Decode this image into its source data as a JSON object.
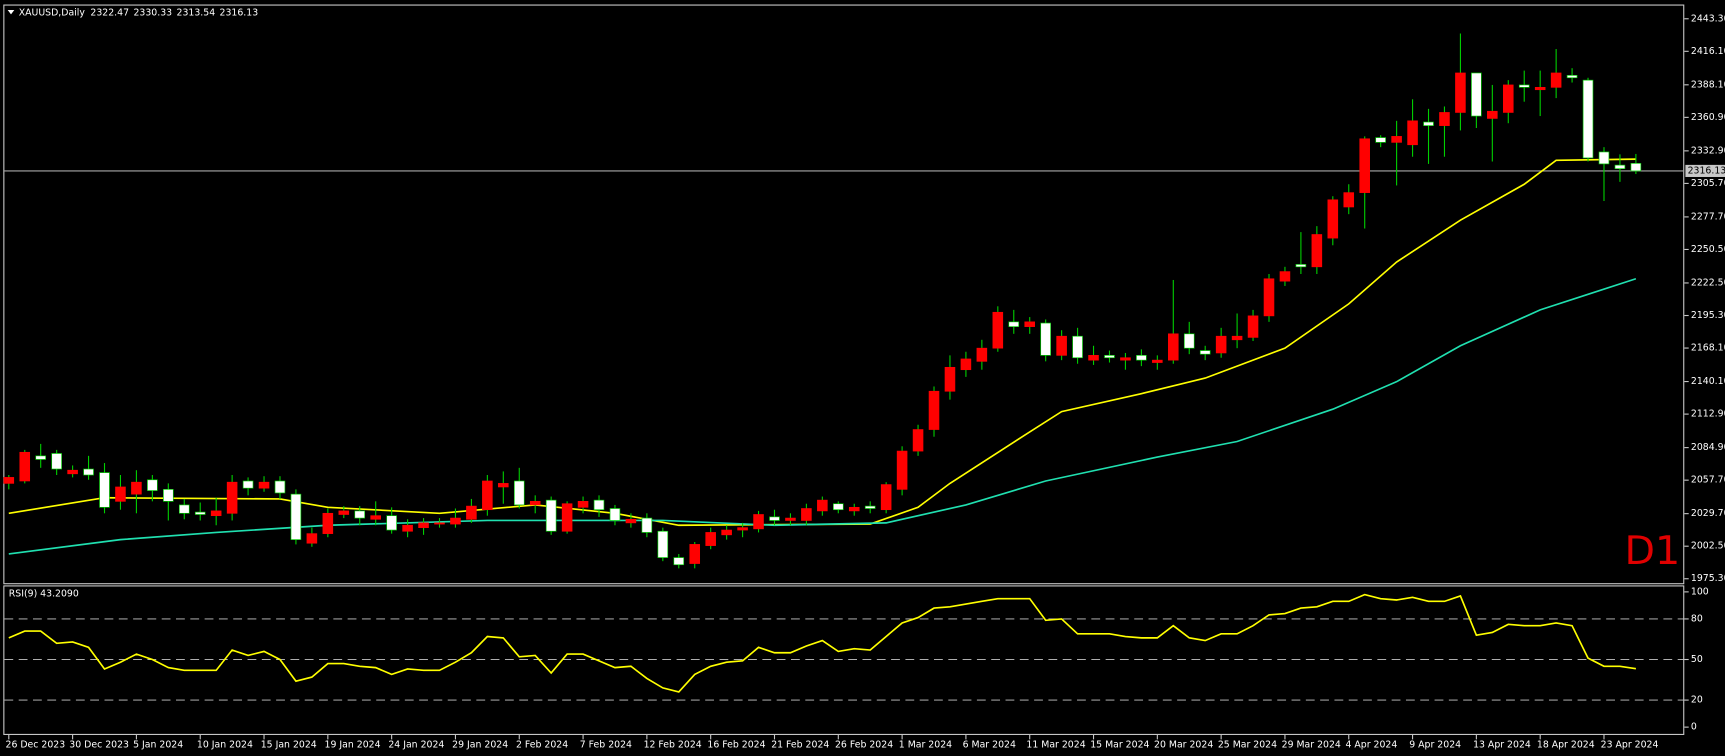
{
  "chart_data": [
    {
      "type": "candlestick",
      "title": "XAUUSD,Daily",
      "ohlc_display": [
        2322.47,
        2330.33,
        2313.54,
        2316.13
      ],
      "timeframe_label": "D1",
      "categories": [
        "26 Dec 2023",
        null,
        null,
        null,
        "30 Dec 2023",
        null,
        null,
        null,
        "5 Jan 2024",
        null,
        null,
        null,
        "10 Jan 2024",
        null,
        null,
        null,
        "15 Jan 2024",
        null,
        null,
        null,
        "19 Jan 2024",
        null,
        null,
        null,
        "24 Jan 2024",
        null,
        null,
        null,
        "29 Jan 2024",
        null,
        null,
        null,
        "2 Feb 2024",
        null,
        null,
        null,
        "7 Feb 2024",
        null,
        null,
        null,
        "12 Feb 2024",
        null,
        null,
        null,
        "16 Feb 2024",
        null,
        null,
        null,
        "21 Feb 2024",
        null,
        null,
        null,
        "26 Feb 2024",
        null,
        null,
        null,
        "1 Mar 2024",
        null,
        null,
        null,
        "6 Mar 2024",
        null,
        null,
        null,
        "11 Mar 2024",
        null,
        null,
        null,
        "15 Mar 2024",
        null,
        null,
        null,
        "20 Mar 2024",
        null,
        null,
        null,
        "25 Mar 2024",
        null,
        null,
        null,
        "29 Mar 2024",
        null,
        null,
        null,
        "4 Apr 2024",
        null,
        null,
        null,
        "9 Apr 2024",
        null,
        null,
        null,
        "13 Apr 2024",
        null,
        null,
        null,
        "18 Apr 2024",
        null,
        null,
        null,
        "23 Apr 2024",
        null,
        null
      ],
      "open": [
        2055,
        2057,
        2078,
        2080,
        2063,
        2067,
        2064,
        2040,
        2046,
        2058,
        2050,
        2037,
        2031,
        2028,
        2030,
        2057,
        2051,
        2057,
        2046,
        2005,
        2013,
        2029,
        2032,
        2025,
        2028,
        2015,
        2018,
        2021,
        2021,
        2025,
        2033,
        2052,
        2057,
        2037,
        2041,
        2015,
        2035,
        2041,
        2034,
        2022,
        2026,
        2015,
        1993,
        1988,
        2003,
        2012,
        2016,
        2017,
        2027,
        2024,
        2024,
        2032,
        2038,
        2032,
        2036,
        2033,
        2050,
        2082,
        2100,
        2132,
        2150,
        2157,
        2168,
        2190,
        2186,
        2189,
        2162,
        2178,
        2158,
        2162,
        2158,
        2162,
        2156,
        2158,
        2180,
        2166,
        2164,
        2175,
        2177,
        2195,
        2224,
        2238,
        2236,
        2260,
        2286,
        2298,
        2344,
        2340,
        2338,
        2357,
        2354,
        2365,
        2398,
        2360,
        2365,
        2388,
        2384,
        2386,
        2396,
        2392,
        2332,
        2321,
        2322.47
      ],
      "high": [
        2062,
        2083,
        2088,
        2083,
        2070,
        2078,
        2072,
        2062,
        2066,
        2062,
        2055,
        2042,
        2039,
        2043,
        2062,
        2060,
        2061,
        2061,
        2050,
        2018,
        2034,
        2036,
        2036,
        2040,
        2035,
        2025,
        2026,
        2026,
        2034,
        2042,
        2062,
        2065,
        2068,
        2045,
        2044,
        2040,
        2044,
        2045,
        2037,
        2030,
        2030,
        2018,
        1996,
        2006,
        2018,
        2020,
        2022,
        2032,
        2033,
        2030,
        2038,
        2044,
        2040,
        2038,
        2040,
        2056,
        2086,
        2104,
        2136,
        2162,
        2165,
        2175,
        2203,
        2200,
        2194,
        2192,
        2183,
        2185,
        2170,
        2166,
        2164,
        2167,
        2162,
        2225,
        2190,
        2170,
        2185,
        2197,
        2200,
        2230,
        2236,
        2265,
        2270,
        2295,
        2305,
        2345,
        2346,
        2358,
        2376,
        2368,
        2370,
        2431,
        2398,
        2388,
        2392,
        2400,
        2400,
        2418,
        2402,
        2394,
        2336,
        2330,
        2330.33
      ],
      "low": [
        2050,
        2055,
        2068,
        2062,
        2060,
        2058,
        2030,
        2033,
        2030,
        2040,
        2024,
        2025,
        2024,
        2020,
        2024,
        2045,
        2048,
        2042,
        2004,
        2002,
        2010,
        2026,
        2020,
        2020,
        2013,
        2010,
        2012,
        2018,
        2018,
        2022,
        2028,
        2038,
        2034,
        2030,
        2012,
        2013,
        2030,
        2027,
        2020,
        2018,
        2010,
        1990,
        1984,
        1984,
        2000,
        2008,
        2010,
        2014,
        2020,
        2020,
        2020,
        2028,
        2030,
        2028,
        2030,
        2030,
        2045,
        2078,
        2094,
        2125,
        2144,
        2150,
        2165,
        2180,
        2180,
        2157,
        2158,
        2155,
        2154,
        2156,
        2150,
        2153,
        2150,
        2155,
        2163,
        2158,
        2160,
        2168,
        2174,
        2190,
        2220,
        2230,
        2230,
        2254,
        2280,
        2268,
        2336,
        2304,
        2328,
        2322,
        2328,
        2350,
        2352,
        2324,
        2356,
        2374,
        2362,
        2377,
        2390,
        2324,
        2291,
        2307,
        2313.54
      ],
      "close": [
        2060,
        2081,
        2075,
        2067,
        2066,
        2062,
        2035,
        2052,
        2056,
        2049,
        2040,
        2030,
        2029,
        2032,
        2056,
        2051,
        2056,
        2047,
        2008,
        2013,
        2030,
        2032,
        2026,
        2028,
        2016,
        2020,
        2022,
        2022,
        2026,
        2036,
        2057,
        2055,
        2037,
        2040,
        2015,
        2038,
        2040,
        2033,
        2024,
        2025,
        2014,
        1993,
        1987,
        2004,
        2014,
        2016,
        2018,
        2029,
        2024,
        2026,
        2034,
        2041,
        2033,
        2035,
        2034,
        2054,
        2082,
        2100,
        2132,
        2152,
        2159,
        2168,
        2198,
        2186,
        2190,
        2162,
        2178,
        2160,
        2162,
        2160,
        2160,
        2158,
        2158,
        2180,
        2168,
        2163,
        2178,
        2178,
        2195,
        2226,
        2232,
        2236,
        2263,
        2292,
        2298,
        2343,
        2340,
        2345,
        2358,
        2354,
        2365,
        2398,
        2362,
        2366,
        2388,
        2386,
        2386,
        2398,
        2394,
        2327,
        2322,
        2318,
        2316.13
      ],
      "up_color": "#ff0000",
      "down_color": "#ffffff",
      "wick_color": "#00d000",
      "series": [
        {
          "color": "#ffff00",
          "x": [
            0,
            6,
            17,
            20,
            27,
            33,
            38,
            42,
            54,
            57,
            59,
            64,
            66,
            71,
            75,
            80,
            84,
            87,
            91,
            95,
            97,
            102
          ],
          "values": [
            2030,
            2043,
            2042,
            2035,
            2030,
            2037,
            2030,
            2020,
            2021,
            2035,
            2055,
            2098,
            2115,
            2130,
            2143,
            2168,
            2205,
            2240,
            2275,
            2305,
            2325,
            2326
          ]
        },
        {
          "color": "#20e0b0",
          "x": [
            0,
            7,
            13,
            20,
            30,
            41,
            48,
            55,
            60,
            65,
            72,
            77,
            83,
            87,
            91,
            96,
            99,
            102
          ],
          "values": [
            1996,
            2008,
            2014,
            2020,
            2024,
            2024,
            2020,
            2022,
            2037,
            2057,
            2077,
            2090,
            2117,
            2140,
            2170,
            2200,
            2213,
            2226
          ]
        }
      ],
      "current_price": {
        "value": 2316.13,
        "label": "2316.13"
      },
      "ylim": [
        1971.6,
        2454.3
      ],
      "yticks": [
        {
          "value": 1975.3,
          "label": "1975.30"
        },
        {
          "value": 2002.5,
          "label": "2002.50"
        },
        {
          "value": 2029.7,
          "label": "2029.70"
        },
        {
          "value": 2057.7,
          "label": "2057.70"
        },
        {
          "value": 2084.9,
          "label": "2084.90"
        },
        {
          "value": 2112.9,
          "label": "2112.90"
        },
        {
          "value": 2140.1,
          "label": "2140.10"
        },
        {
          "value": 2168.1,
          "label": "2168.10"
        },
        {
          "value": 2195.3,
          "label": "2195.30"
        },
        {
          "value": 2222.5,
          "label": "2222.50"
        },
        {
          "value": 2250.5,
          "label": "2250.50"
        },
        {
          "value": 2277.7,
          "label": "2277.70"
        },
        {
          "value": 2305.7,
          "label": "2305.70"
        },
        {
          "value": 2332.9,
          "label": "2332.90"
        },
        {
          "value": 2360.9,
          "label": "2360.90"
        },
        {
          "value": 2388.1,
          "label": "2388.10"
        },
        {
          "value": 2416.1,
          "label": "2416.10"
        },
        {
          "value": 2443.3,
          "label": "2443.30"
        }
      ]
    },
    {
      "type": "line",
      "title": "RSI(9) 43.2090",
      "color": "#ffff00",
      "values": [
        66,
        71,
        71,
        62,
        63,
        59,
        43,
        48,
        54,
        50,
        44,
        42,
        42,
        42,
        57,
        53,
        56,
        50,
        34,
        37,
        47,
        47,
        45,
        44,
        39,
        43,
        42,
        42,
        48,
        55,
        67,
        66,
        52,
        53,
        40,
        54,
        54,
        49,
        44,
        45,
        36,
        29,
        26,
        39,
        45,
        48,
        49,
        59,
        55,
        55,
        60,
        64,
        56,
        58,
        57,
        67,
        77,
        81,
        88,
        89,
        91,
        93,
        95,
        95,
        95,
        79,
        80,
        69,
        69,
        69,
        67,
        66,
        66,
        75,
        66,
        64,
        69,
        69,
        75,
        83,
        84,
        88,
        89,
        93,
        93,
        98,
        95,
        94,
        96,
        93,
        93,
        97,
        68,
        70,
        76,
        75,
        75,
        77,
        75,
        51,
        45,
        45,
        43.209
      ],
      "ylim": [
        -5,
        104
      ],
      "yticks": [
        0,
        20,
        50,
        80,
        100
      ],
      "grid_levels": [
        20,
        50,
        80
      ]
    }
  ]
}
